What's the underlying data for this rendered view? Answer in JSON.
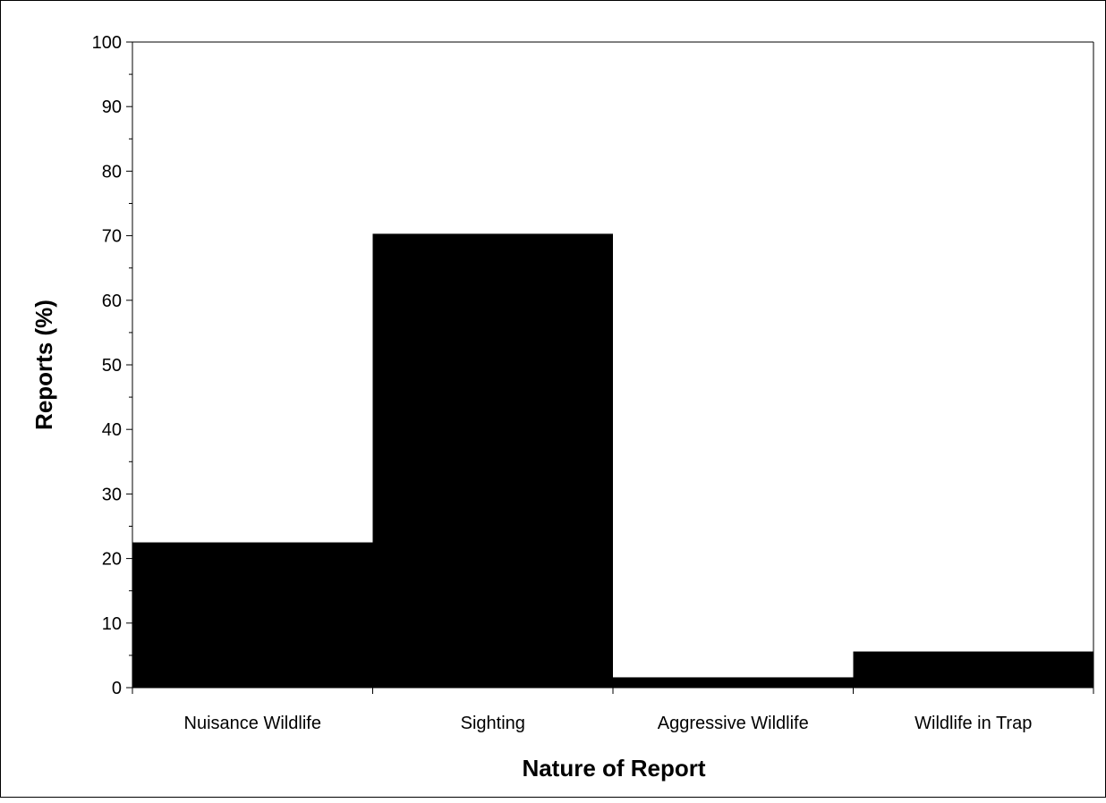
{
  "chart_data": {
    "type": "bar",
    "title": "",
    "xlabel": "Nature of Report",
    "ylabel": "Reports (%)",
    "categories": [
      "Nuisance Wildlife",
      "Sighting",
      "Aggressive Wildlife",
      "Wildlife in Trap"
    ],
    "values": [
      22.5,
      70.3,
      1.6,
      5.6
    ],
    "ylim": [
      0,
      100
    ],
    "yticks": [
      "0",
      "10",
      "20",
      "30",
      "40",
      "50",
      "60",
      "70",
      "80",
      "90",
      "100"
    ],
    "grid": false,
    "legend": "none",
    "bar_color": "#000000"
  }
}
